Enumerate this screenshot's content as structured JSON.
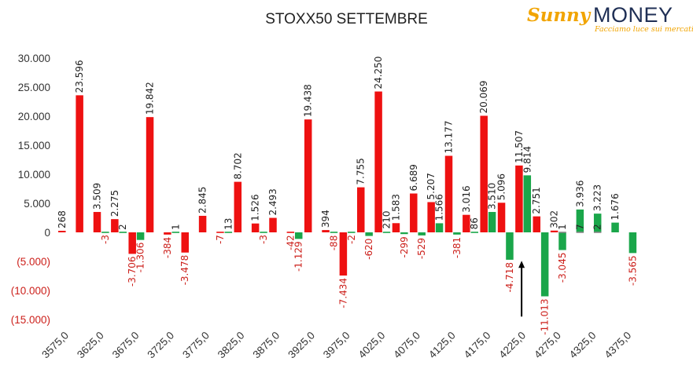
{
  "header": {
    "title": "STOXX50 SETTEMBRE",
    "logo": {
      "sunny": "Sunny",
      "money": "MONEY",
      "tagline": "Facciamo luce sui mercati"
    }
  },
  "colors": {
    "negative_tick": "#cc1f1a",
    "positive_tick": "#333333",
    "annotation_arrow": "#000000"
  },
  "chart_data": {
    "type": "bar",
    "title": "STOXX50 SETTEMBRE",
    "xlabel": "",
    "ylabel": "",
    "ylim": [
      -15000,
      30000
    ],
    "y_ticks": [
      30000,
      25000,
      20000,
      15000,
      10000,
      5000,
      0,
      -5000,
      -10000,
      -15000
    ],
    "y_tick_labels": [
      "30.000",
      "25.000",
      "20.000",
      "15.000",
      "10.000",
      "5.000",
      "0",
      "(5.000)",
      "(10.000)",
      "(15.000)"
    ],
    "x_tick_labels": [
      "3575,0",
      "3625,0",
      "3675,0",
      "3725,0",
      "3775,0",
      "3825,0",
      "3875,0",
      "3925,0",
      "3975,0",
      "4025,0",
      "4075,0",
      "4125,0",
      "4175,0",
      "4225,0",
      "4275,0",
      "4325,0",
      "4375,0"
    ],
    "categories": [
      3575,
      3600,
      3625,
      3650,
      3675,
      3700,
      3725,
      3750,
      3775,
      3800,
      3825,
      3850,
      3875,
      3900,
      3925,
      3950,
      3975,
      4000,
      4025,
      4050,
      4075,
      4100,
      4125,
      4150,
      4175,
      4200,
      4225,
      4250,
      4275,
      4300,
      4325,
      4350,
      4375
    ],
    "series": [
      {
        "color": "#ee1111",
        "values": [
          268,
          23596,
          3509,
          2275,
          -3706,
          19842,
          -384,
          -3478,
          2845,
          -7,
          8702,
          1526,
          2493,
          -42,
          19438,
          394,
          -7434,
          7755,
          24250,
          1583,
          6689,
          5207,
          13177,
          3016,
          20069,
          5096,
          11507,
          2751,
          302,
          null,
          null,
          null,
          null
        ],
        "labels": [
          "268",
          "23.596",
          "3.509",
          "2.275",
          "-3.706",
          "19.842",
          "-384",
          "-3.478",
          "2.845",
          "-7",
          "8.702",
          "1.526",
          "2.493",
          "-42",
          "19.438",
          "394",
          "-7.434",
          "7.755",
          "24.250",
          "1.583",
          "6.689",
          "5.207",
          "13.177",
          "3.016",
          "20.069",
          "5.096",
          "11.507",
          "2.751",
          "302",
          null,
          null,
          null,
          null
        ]
      },
      {
        "color": "#1aa64a",
        "values": [
          null,
          null,
          -3,
          2,
          -1306,
          null,
          1,
          null,
          null,
          13,
          null,
          -3,
          null,
          -1129,
          null,
          -88,
          -2,
          -620,
          210,
          -299,
          -529,
          1566,
          -381,
          86,
          3510,
          -4718,
          9814,
          -11013,
          -3045,
          3936,
          3223,
          1676,
          -3565
        ],
        "labels": [
          null,
          null,
          "-3",
          "2",
          "-1.306",
          null,
          "1",
          null,
          null,
          "13",
          null,
          "-3",
          null,
          "-1.129",
          null,
          "-88",
          "-2",
          "-620",
          "210",
          "-299",
          "-529",
          "1.566",
          "-381",
          "86",
          "3.510",
          "-4.718",
          "9.814",
          "-11.013",
          "-3.045",
          "3.936",
          "3.223",
          "1.676",
          "-3.565"
        ]
      },
      {
        "color": "#888888",
        "values": [
          null,
          null,
          null,
          null,
          null,
          null,
          null,
          null,
          null,
          null,
          null,
          null,
          null,
          null,
          null,
          null,
          null,
          null,
          null,
          null,
          null,
          null,
          null,
          null,
          null,
          null,
          null,
          null,
          1,
          7,
          2,
          null,
          null
        ],
        "labels": [
          null,
          null,
          null,
          null,
          null,
          null,
          null,
          null,
          null,
          null,
          null,
          null,
          null,
          null,
          null,
          null,
          null,
          null,
          null,
          null,
          null,
          null,
          null,
          null,
          null,
          null,
          null,
          null,
          "1",
          "7",
          "2",
          null,
          null
        ]
      }
    ],
    "annotations": [
      {
        "type": "arrow",
        "category": 4225,
        "from_value": -14500,
        "to_value": -4900
      }
    ],
    "grid": false,
    "legend": "none"
  }
}
